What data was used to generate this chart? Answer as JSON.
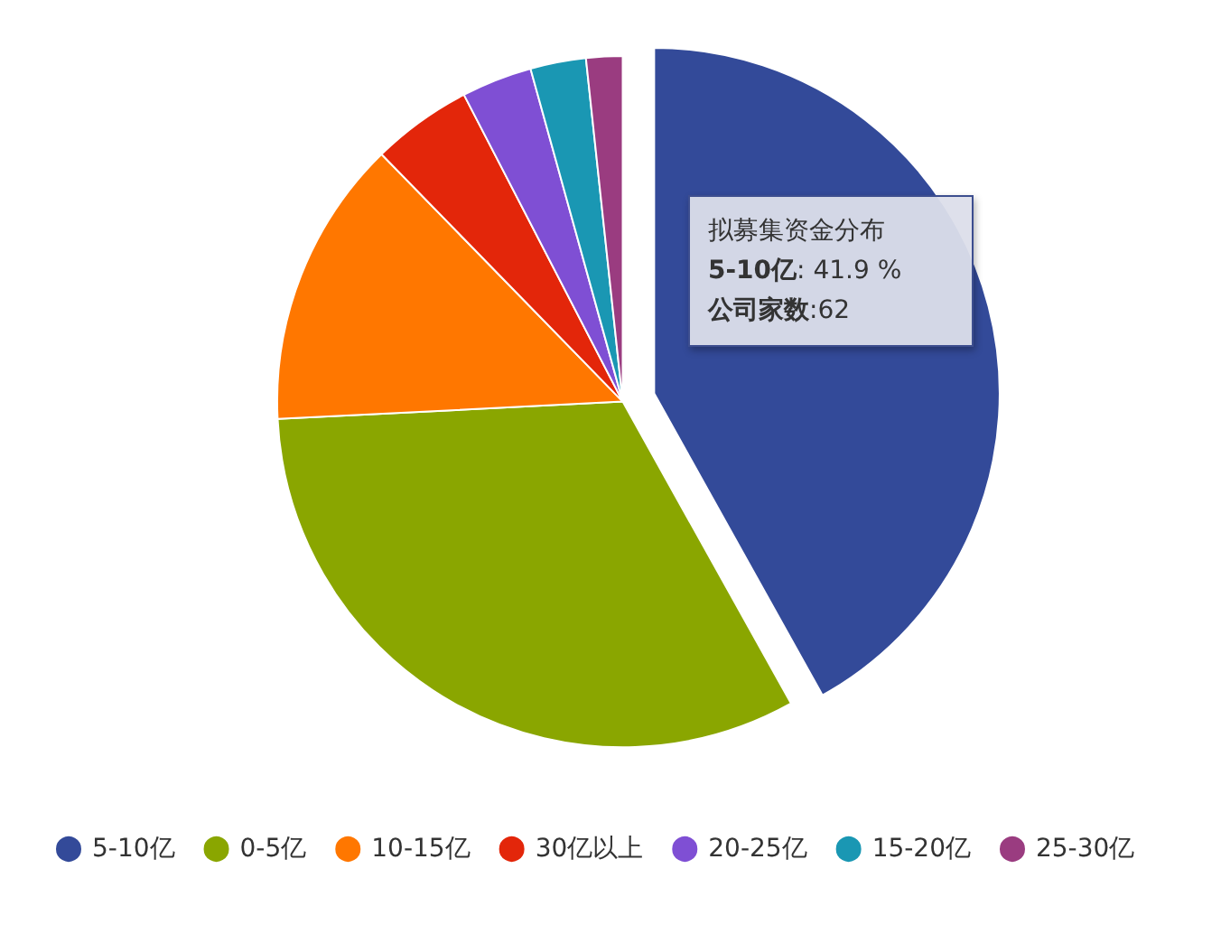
{
  "chart_data": {
    "type": "pie",
    "categories": [
      "5-10亿",
      "0-5亿",
      "10-15亿",
      "30亿以上",
      "20-25亿",
      "15-20亿",
      "25-30亿"
    ],
    "values": [
      41.9,
      32.3,
      13.5,
      4.7,
      3.3,
      2.6,
      1.7
    ],
    "colors": [
      "#334a99",
      "#8aa600",
      "#ff7700",
      "#e3260a",
      "#7f4fd4",
      "#1a97b3",
      "#9a3c80"
    ],
    "legend": "bottom",
    "annotations": [
      "拟募集资金分布",
      "5-10亿: 41.9 %",
      "公司家数:62"
    ]
  }
}
